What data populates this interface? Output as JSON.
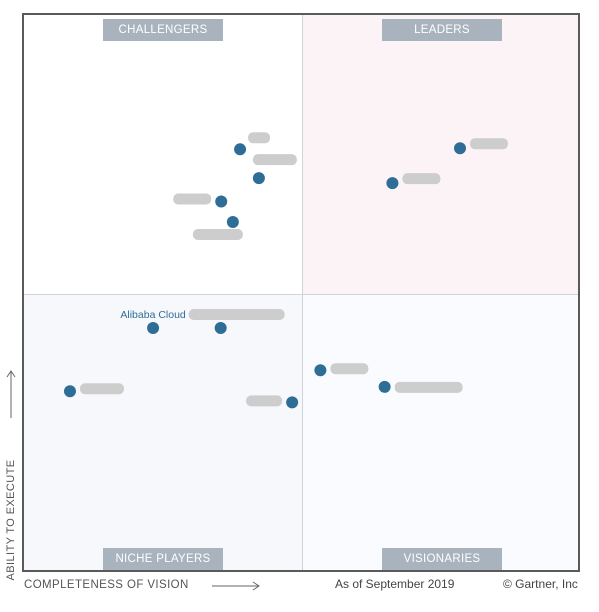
{
  "quadrants": {
    "top_left": "CHALLENGERS",
    "top_right": "LEADERS",
    "bottom_left": "NICHE PLAYERS",
    "bottom_right": "VISIONARIES"
  },
  "axes": {
    "x_label": "COMPLETENESS OF VISION",
    "y_label": "ABILITY TO EXECUTE"
  },
  "footer": {
    "date": "As of September 2019",
    "copyright": "© Gartner, Inc"
  },
  "colors": {
    "dot": "#2e6e96",
    "quadrant_label_bg": "#a9b3bd",
    "leaders_bg": "#fbf3f5",
    "border": "#5a5a5a"
  },
  "chart_data": {
    "type": "scatter",
    "title": "",
    "xlabel": "COMPLETENESS OF VISION",
    "ylabel": "ABILITY TO EXECUTE",
    "xlim": [
      0,
      1
    ],
    "ylim": [
      0,
      1
    ],
    "grid": false,
    "points": [
      {
        "label": "",
        "x": 0.787,
        "y": 0.76,
        "obscured": true
      },
      {
        "label": "",
        "x": 0.665,
        "y": 0.697,
        "obscured": true
      },
      {
        "label": "",
        "x": 0.39,
        "y": 0.758,
        "obscured": true
      },
      {
        "label": "",
        "x": 0.424,
        "y": 0.706,
        "obscured": true
      },
      {
        "label": "",
        "x": 0.356,
        "y": 0.664,
        "obscured": true
      },
      {
        "label": "",
        "x": 0.377,
        "y": 0.627,
        "obscured": true
      },
      {
        "label": "Alibaba Cloud",
        "x": 0.233,
        "y": 0.436,
        "obscured": false
      },
      {
        "label": "",
        "x": 0.355,
        "y": 0.436,
        "obscured": true
      },
      {
        "label": "",
        "x": 0.083,
        "y": 0.322,
        "obscured": true
      },
      {
        "label": "",
        "x": 0.484,
        "y": 0.302,
        "obscured": true
      },
      {
        "label": "",
        "x": 0.535,
        "y": 0.36,
        "obscured": true
      },
      {
        "label": "",
        "x": 0.651,
        "y": 0.33,
        "obscured": true
      }
    ]
  }
}
